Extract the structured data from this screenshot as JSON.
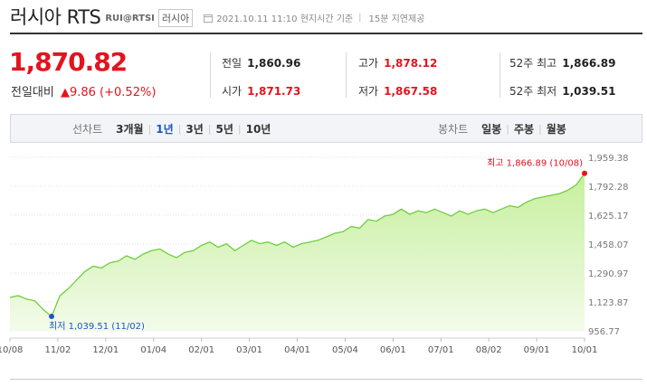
{
  "header": {
    "title": "러시아 RTS",
    "code": "RUI@RTSI",
    "country_tag": "러시아",
    "datetime": "2021.10.11 11:10 현지시간 기준",
    "delay_note": "15분 지연제공"
  },
  "price": {
    "current": "1,870.82",
    "change_label": "전일대비",
    "change_value": "9.86 (+0.52%)",
    "direction": "up"
  },
  "stats": {
    "prev_close_label": "전일",
    "prev_close": "1,860.96",
    "open_label": "시가",
    "open": "1,871.73",
    "high_label": "고가",
    "high": "1,878.12",
    "low_label": "저가",
    "low": "1,867.58",
    "w52_high_label": "52주 최고",
    "w52_high": "1,866.89",
    "w52_low_label": "52주 최저",
    "w52_low": "1,039.51"
  },
  "tabs": {
    "line_label": "선차트",
    "line_ranges": [
      "3개월",
      "1년",
      "3년",
      "5년",
      "10년"
    ],
    "line_active": "1년",
    "candle_label": "봉차트",
    "candle_ranges": [
      "일봉",
      "주봉",
      "월봉"
    ]
  },
  "colors": {
    "up": "#e3141e",
    "down": "#1a56c6",
    "line": "#6fce3c",
    "fill_top": "#c6ef9d",
    "fill_bottom": "#f3fbea"
  },
  "chart_data": {
    "type": "area",
    "title": "",
    "xlabel": "",
    "ylabel": "",
    "ylim": [
      956.77,
      1959.38
    ],
    "y_ticks": [
      "1,959.38",
      "1,792.28",
      "1,625.17",
      "1,458.07",
      "1,290.97",
      "1,123.87",
      "956.77"
    ],
    "x_ticks": [
      "10/08",
      "11/02",
      "12/01",
      "01/04",
      "02/01",
      "03/01",
      "04/01",
      "05/04",
      "06/01",
      "07/01",
      "08/02",
      "09/01",
      "10/01"
    ],
    "grid": "horizontal-dotted",
    "annotations": {
      "high_label": "최고 1,866.89 (10/08)",
      "low_label": "최저 1,039.51 (11/02)"
    },
    "x": [
      "10/08",
      "10/13",
      "10/19",
      "10/23",
      "10/29",
      "11/02",
      "11/06",
      "11/12",
      "11/18",
      "11/24",
      "11/30",
      "12/04",
      "12/10",
      "12/16",
      "12/22",
      "12/28",
      "01/04",
      "01/08",
      "01/14",
      "01/20",
      "01/26",
      "02/01",
      "02/05",
      "02/11",
      "02/17",
      "02/23",
      "03/01",
      "03/05",
      "03/11",
      "03/17",
      "03/23",
      "03/29",
      "04/01",
      "04/07",
      "04/13",
      "04/19",
      "04/23",
      "04/29",
      "05/04",
      "05/10",
      "05/14",
      "05/20",
      "05/26",
      "06/01",
      "06/07",
      "06/11",
      "06/17",
      "06/23",
      "06/29",
      "07/01",
      "07/07",
      "07/13",
      "07/19",
      "07/23",
      "07/29",
      "08/02",
      "08/06",
      "08/12",
      "08/18",
      "08/24",
      "08/30",
      "09/01",
      "09/07",
      "09/13",
      "09/17",
      "09/23",
      "09/29",
      "10/01",
      "10/05",
      "10/08"
    ],
    "series": [
      {
        "values": [
          1150,
          1160,
          1140,
          1130,
          1080,
          1040,
          1160,
          1200,
          1250,
          1300,
          1330,
          1320,
          1350,
          1360,
          1390,
          1370,
          1400,
          1420,
          1430,
          1400,
          1380,
          1410,
          1420,
          1450,
          1470,
          1440,
          1460,
          1420,
          1450,
          1480,
          1460,
          1470,
          1450,
          1470,
          1440,
          1460,
          1470,
          1480,
          1500,
          1520,
          1530,
          1560,
          1550,
          1600,
          1590,
          1620,
          1630,
          1660,
          1630,
          1650,
          1640,
          1660,
          1640,
          1620,
          1650,
          1630,
          1650,
          1660,
          1640,
          1660,
          1680,
          1670,
          1700,
          1720,
          1730,
          1740,
          1750,
          1770,
          1800,
          1866.89
        ]
      }
    ]
  }
}
